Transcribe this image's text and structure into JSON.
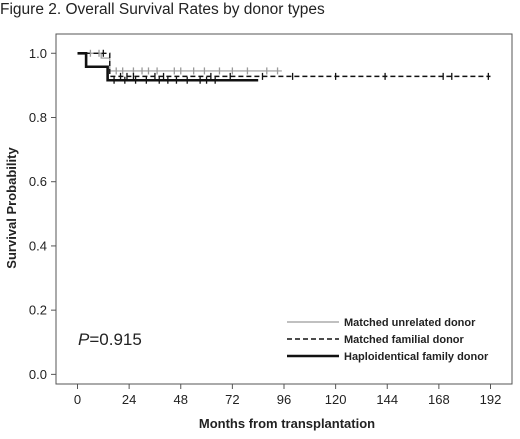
{
  "figure_title": "Figure 2. Overall Survival Rates by donor types",
  "chart_data": {
    "type": "line",
    "subtype": "kaplan-meier",
    "xlabel": "Months from transplantation",
    "ylabel": "Survival Probability",
    "xlim": [
      -10,
      202
    ],
    "ylim": [
      -0.03,
      1.06
    ],
    "x_ticks": [
      0,
      24,
      48,
      72,
      96,
      120,
      144,
      168,
      192
    ],
    "y_ticks": [
      0.0,
      0.2,
      0.4,
      0.6,
      0.8,
      1.0
    ],
    "y_tick_labels": [
      "0.0",
      "0.2",
      "0.4",
      "0.6",
      "0.8",
      "1.0"
    ],
    "grid": false,
    "legend_position": "bottom-right",
    "annotation": {
      "prefix": "P",
      "text": "=0.915"
    },
    "series": [
      {
        "name": "Matched  unrelated donor",
        "style": "solid-thin",
        "color": "#9a9a9a",
        "steps": [
          [
            0,
            1.0
          ],
          [
            11,
            0.985
          ],
          [
            15,
            0.945
          ],
          [
            95,
            0.945
          ]
        ],
        "censored": [
          6,
          10,
          18,
          21,
          26,
          30,
          33,
          37,
          45,
          48,
          54,
          59,
          66,
          72,
          79,
          88,
          93
        ]
      },
      {
        "name": "Matched familial donor",
        "style": "dashed",
        "color": "#111111",
        "steps": [
          [
            0,
            1.0
          ],
          [
            15,
            0.928
          ],
          [
            192,
            0.928
          ]
        ],
        "censored": [
          12,
          20,
          23,
          26,
          36,
          40,
          62,
          71,
          86,
          100,
          120,
          143,
          170,
          174,
          191
        ]
      },
      {
        "name": "Haploidentical  family donor",
        "style": "solid-thick",
        "color": "#111111",
        "steps": [
          [
            0,
            1.0
          ],
          [
            4,
            0.958
          ],
          [
            14,
            0.916
          ],
          [
            84,
            0.916
          ]
        ],
        "censored": [
          17,
          22,
          27,
          32,
          38,
          42,
          46,
          51,
          57,
          60,
          64
        ]
      }
    ]
  }
}
